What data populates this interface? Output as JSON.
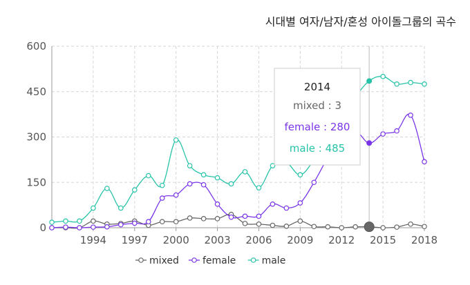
{
  "chart_data": {
    "type": "line",
    "title": "시대별 여자/남자/혼성 아이돌그룹의 곡수",
    "x": [
      1991,
      1992,
      1993,
      1994,
      1995,
      1996,
      1997,
      1998,
      1999,
      2000,
      2001,
      2002,
      2003,
      2004,
      2005,
      2006,
      2007,
      2008,
      2009,
      2010,
      2011,
      2012,
      2013,
      2014,
      2015,
      2016,
      2017,
      2018
    ],
    "x_ticks": [
      "1994",
      "1997",
      "2000",
      "2003",
      "2006",
      "2009",
      "2012",
      "2015",
      "2018"
    ],
    "y_ticks": [
      "0",
      "150",
      "300",
      "450",
      "600"
    ],
    "ylim": [
      0,
      600
    ],
    "xlim": [
      1991,
      2018
    ],
    "grid": true,
    "legend_position": "bottom",
    "series": [
      {
        "name": "mixed",
        "color": "#666666",
        "values": [
          0,
          0,
          0,
          22,
          12,
          14,
          22,
          8,
          20,
          20,
          32,
          30,
          30,
          44,
          14,
          12,
          8,
          5,
          22,
          4,
          3,
          0,
          3,
          3,
          0,
          2,
          12,
          4
        ]
      },
      {
        "name": "female",
        "color": "#7a35e8",
        "values": [
          0,
          2,
          0,
          2,
          3,
          10,
          15,
          20,
          98,
          108,
          145,
          142,
          78,
          35,
          38,
          38,
          78,
          65,
          82,
          150,
          232,
          300,
          320,
          280,
          310,
          320,
          372,
          218
        ]
      },
      {
        "name": "male",
        "color": "#27c3a8",
        "values": [
          18,
          22,
          22,
          65,
          130,
          65,
          125,
          172,
          140,
          290,
          205,
          175,
          165,
          145,
          185,
          132,
          205,
          215,
          175,
          225,
          295,
          340,
          430,
          485,
          500,
          475,
          480,
          475
        ]
      }
    ],
    "tooltip": {
      "title": "2014",
      "lines": [
        {
          "label": "mixed : 3",
          "color": "#666666"
        },
        {
          "label": "female : 280",
          "color": "#7a35e8"
        },
        {
          "label": "male : 485",
          "color": "#27c3a8"
        }
      ]
    },
    "highlight_index": 23
  }
}
